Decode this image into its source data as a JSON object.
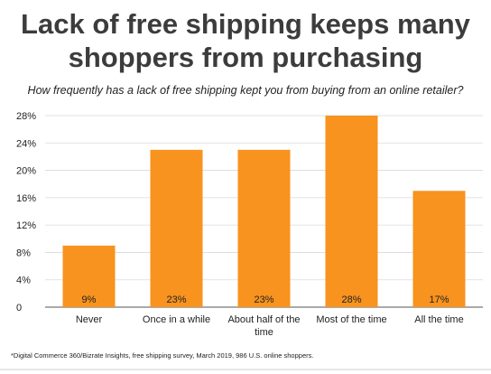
{
  "header": {
    "title_line1": "Lack of free shipping keeps many",
    "title_line2": "shoppers from purchasing",
    "subtitle": "How frequently has a lack of free shipping kept you from buying from an online retailer?"
  },
  "footnote": "*Digital Commerce 360/Bizrate Insights, free shipping survey, March 2019, 986 U.S. online shoppers.",
  "colors": {
    "bar": "#f7931e",
    "grid": "#d9d9d9",
    "axis": "#555555"
  },
  "chart_data": {
    "type": "bar",
    "title": "Lack of free shipping keeps many shoppers from purchasing",
    "subtitle": "How frequently has a lack of free shipping kept you from buying from an online retailer?",
    "categories": [
      "Never",
      "Once in a while",
      "About half of the time",
      "Most of the time",
      "All the time"
    ],
    "category_lines": [
      [
        "Never"
      ],
      [
        "Once in a while"
      ],
      [
        "About half of the",
        "time"
      ],
      [
        "Most of the time"
      ],
      [
        "All the time"
      ]
    ],
    "values": [
      9,
      23,
      23,
      28,
      17
    ],
    "data_labels": [
      "9%",
      "23%",
      "23%",
      "28%",
      "17%"
    ],
    "yticks": [
      0,
      4,
      8,
      12,
      16,
      20,
      24,
      28
    ],
    "ytick_labels": [
      "0",
      "4%",
      "8%",
      "12%",
      "16%",
      "20%",
      "24%",
      "28%"
    ],
    "ylim": [
      0,
      28
    ],
    "xlabel": "",
    "ylabel": "",
    "grid": true,
    "legend": "none"
  }
}
